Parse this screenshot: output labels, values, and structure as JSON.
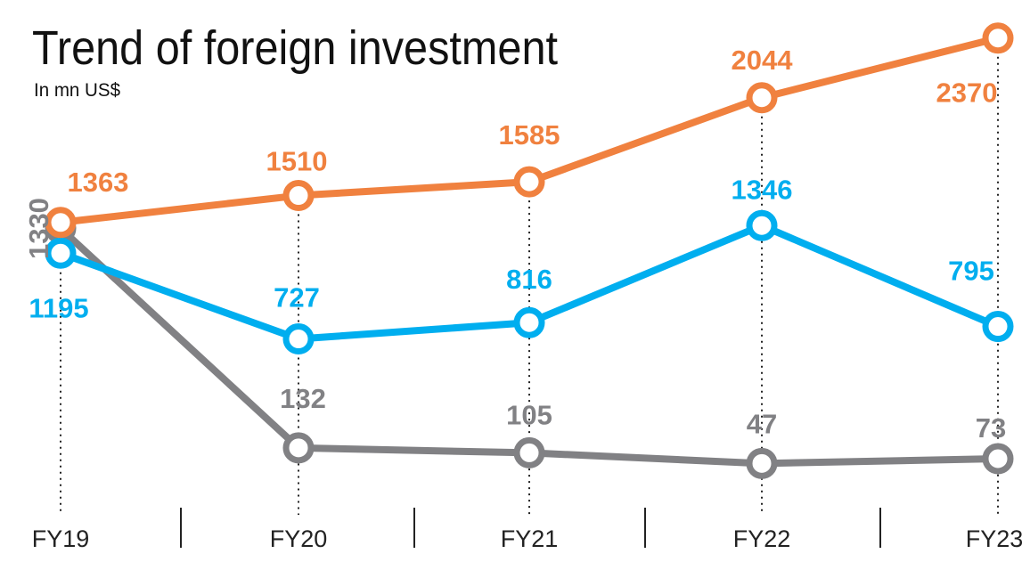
{
  "chart_data": {
    "type": "line",
    "title": "Trend of foreign investment",
    "subtitle": "In mn US$",
    "xlabel": "",
    "ylabel": "",
    "categories": [
      "FY19",
      "FY20",
      "FY21",
      "FY22",
      "FY23"
    ],
    "ylim": [
      0,
      2500
    ],
    "grid": false,
    "legend": "none",
    "series": [
      {
        "name": "orange",
        "color": "#F0813F",
        "values": [
          1363,
          1510,
          1585,
          2044,
          2370
        ]
      },
      {
        "name": "blue",
        "color": "#00AEEF",
        "values": [
          1195,
          727,
          816,
          1346,
          795
        ]
      },
      {
        "name": "gray",
        "color": "#818184",
        "values": [
          1330,
          132,
          105,
          47,
          73
        ]
      }
    ]
  }
}
